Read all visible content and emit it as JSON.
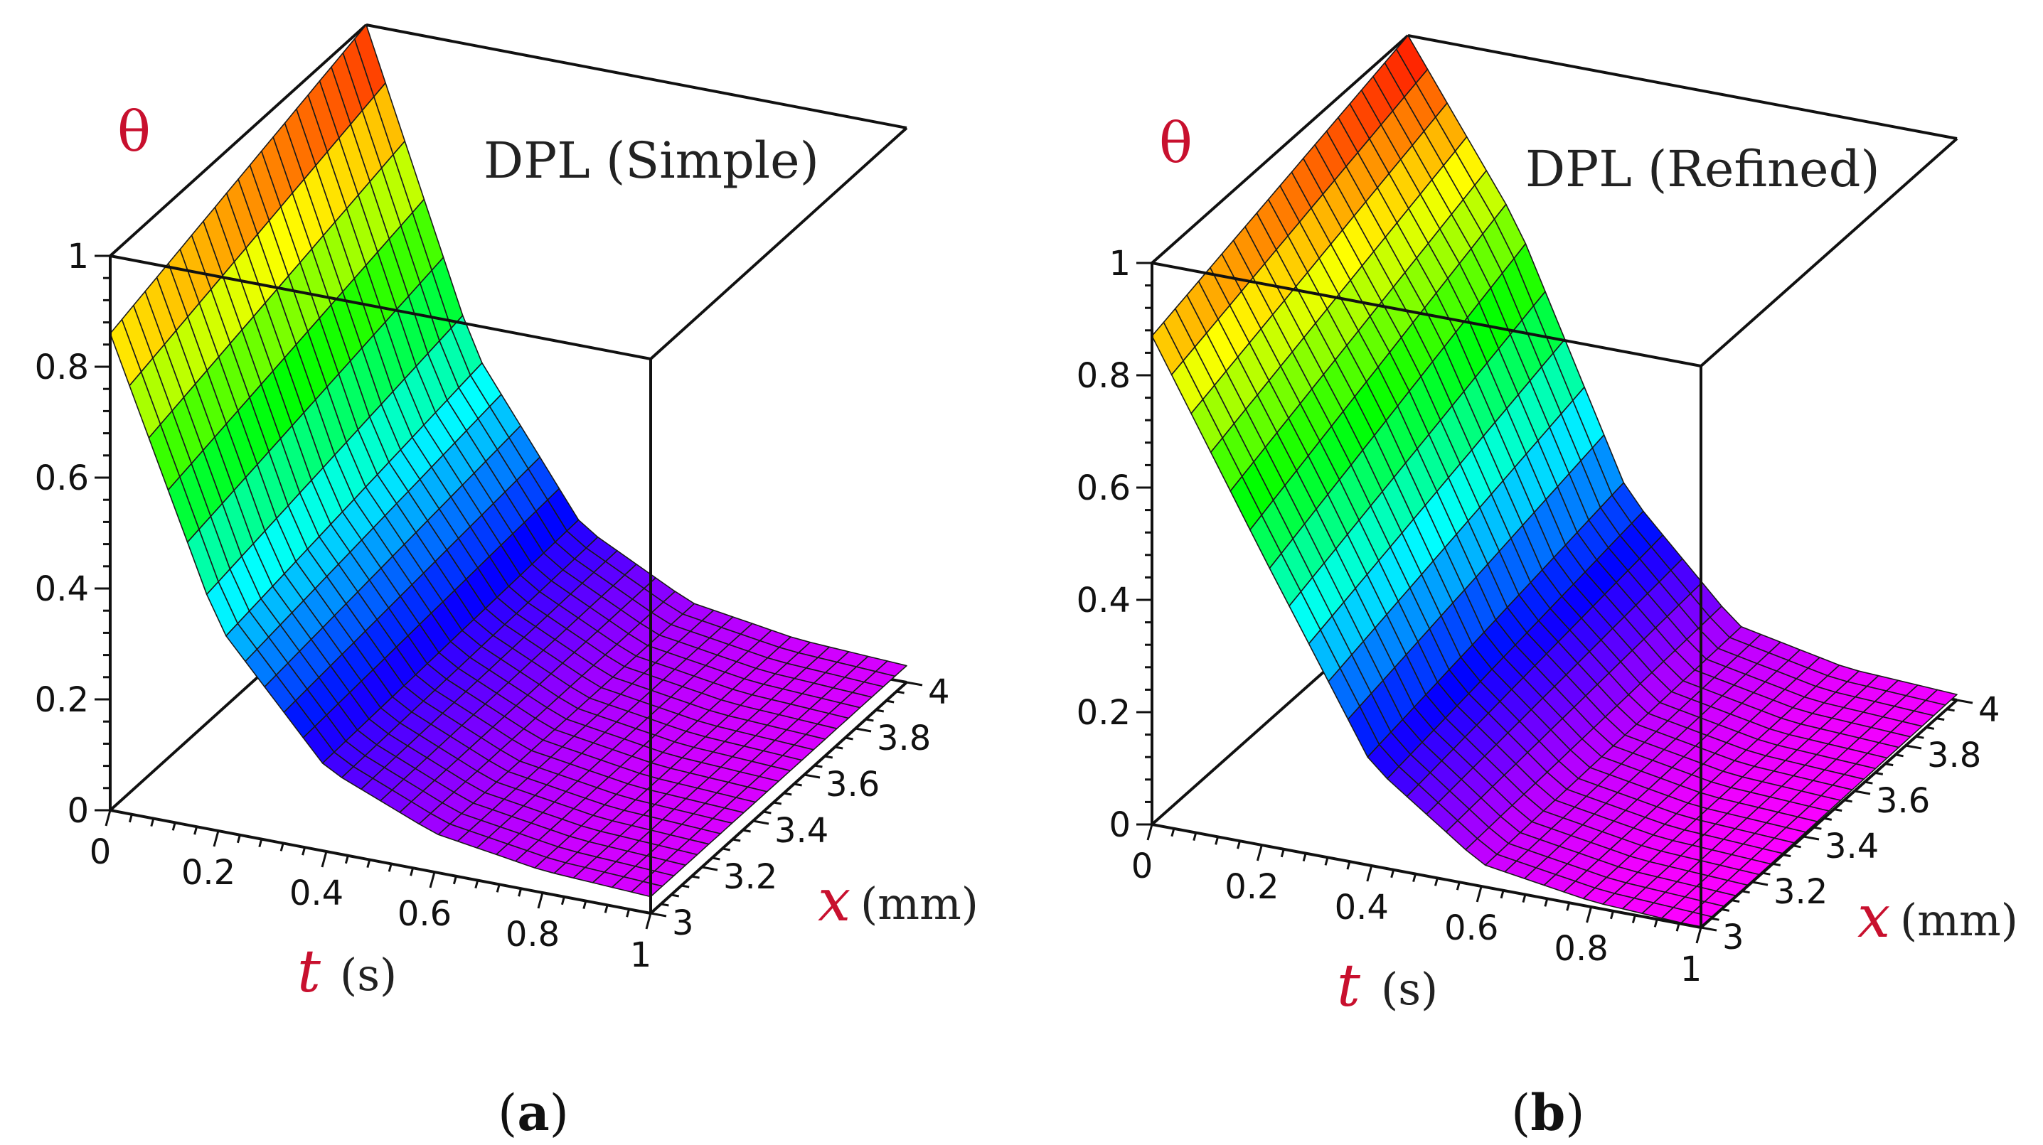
{
  "chart_data": [
    {
      "type": "surface",
      "panel": "(a)",
      "caption_letter": "a",
      "title": "DPL (Simple)",
      "zlabel": "θ",
      "xlabel_var": "t",
      "xlabel_unit": "(s)",
      "ylabel_var": "x",
      "ylabel_unit": "(mm)",
      "t_range": [
        0,
        1
      ],
      "x_range": [
        3,
        4
      ],
      "z_range": [
        0,
        1
      ],
      "t_ticks": [
        "0",
        "0.2",
        "0.4",
        "0.6",
        "0.8",
        "1"
      ],
      "x_ticks": [
        "3",
        "3.2",
        "3.4",
        "3.6",
        "3.8",
        "4"
      ],
      "z_ticks": [
        "0",
        "0.2",
        "0.4",
        "0.6",
        "0.8",
        "1"
      ],
      "t_samples": [
        0,
        0.2,
        0.4,
        0.6,
        0.8,
        1
      ],
      "theta_at_x3": [
        0.86,
        0.37,
        0.15,
        0.07,
        0.04,
        0.03
      ],
      "theta_at_x4": [
        1.0,
        0.45,
        0.17,
        0.07,
        0.04,
        0.03
      ]
    },
    {
      "type": "surface",
      "panel": "(b)",
      "caption_letter": "b",
      "title": "DPL (Refined)",
      "zlabel": "θ",
      "xlabel_var": "t",
      "xlabel_unit": "(s)",
      "ylabel_var": "x",
      "ylabel_unit": "(mm)",
      "t_range": [
        0,
        1
      ],
      "x_range": [
        3,
        4
      ],
      "z_range": [
        0,
        1
      ],
      "t_ticks": [
        "0",
        "0.2",
        "0.4",
        "0.6",
        "0.8",
        "1"
      ],
      "x_ticks": [
        "3",
        "3.2",
        "3.4",
        "3.6",
        "3.8",
        "4"
      ],
      "z_ticks": [
        "0",
        "0.2",
        "0.4",
        "0.6",
        "0.8",
        "1"
      ],
      "t_samples": [
        0,
        0.2,
        0.4,
        0.6,
        0.8,
        1
      ],
      "theta_at_x3": [
        0.87,
        0.52,
        0.18,
        0.04,
        0.01,
        0.0
      ],
      "theta_at_x4": [
        1.0,
        0.7,
        0.26,
        0.06,
        0.02,
        0.01
      ]
    }
  ]
}
